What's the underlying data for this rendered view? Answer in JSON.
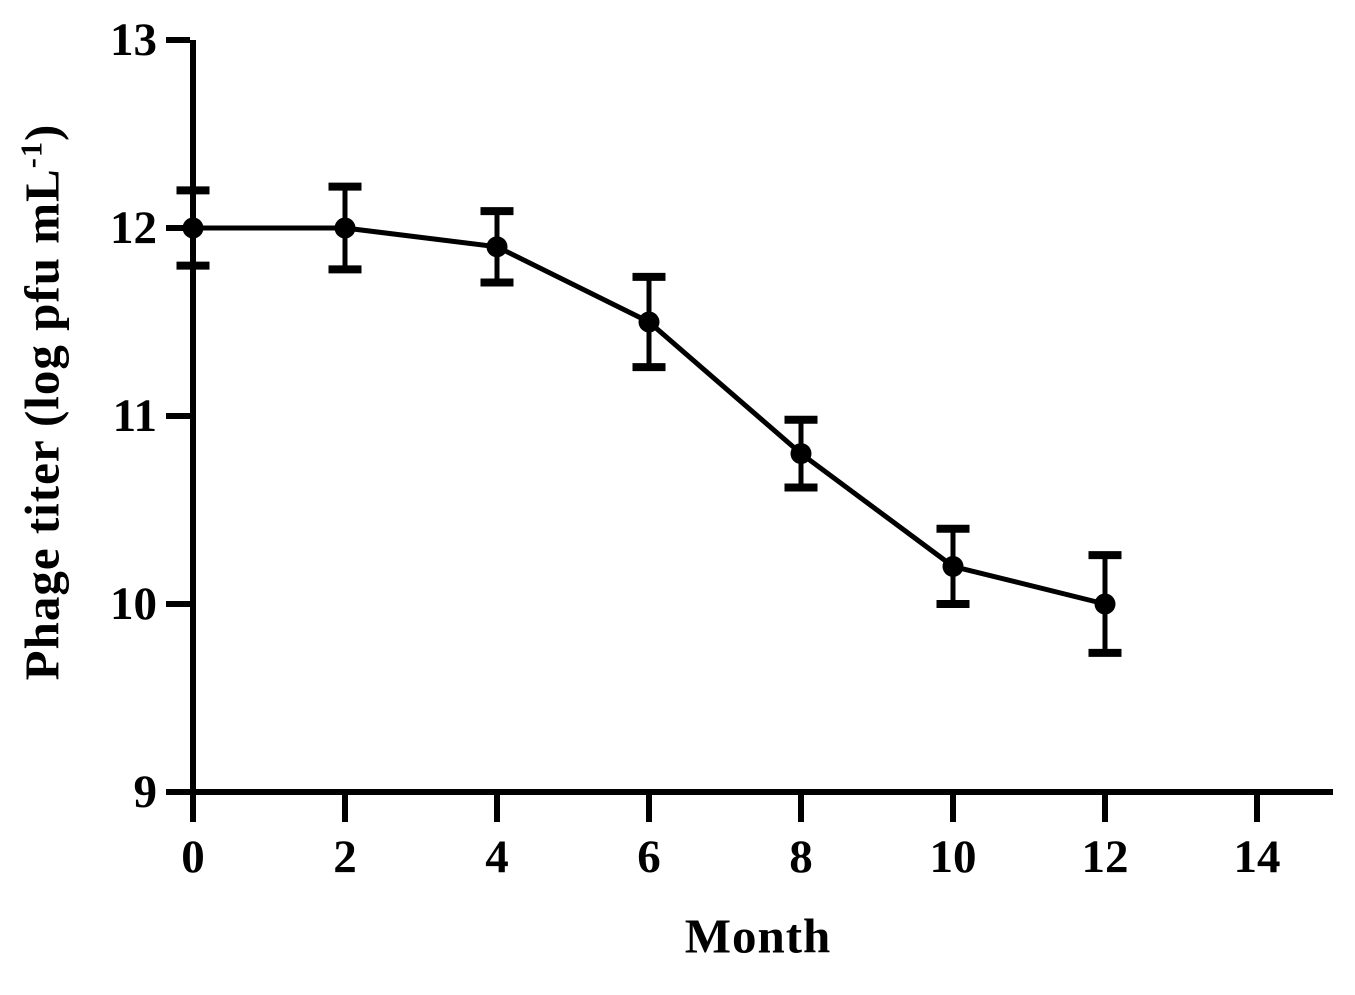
{
  "figure": {
    "background": "#ffffff",
    "ink_color": "#000000"
  },
  "axes": {
    "y_label_pre": "Phage titer (log pfu mL",
    "y_label_sup": "-1",
    "y_label_post": ")"
  },
  "chart_data": {
    "type": "line",
    "title": "",
    "xlabel": "Month",
    "ylabel": "Phage titer (log pfu mL^-1)",
    "x": [
      0,
      2,
      4,
      6,
      8,
      10,
      12
    ],
    "series": [
      {
        "name": "Phage titer",
        "values": [
          12.0,
          12.0,
          11.9,
          11.5,
          10.8,
          10.2,
          10.0
        ],
        "errors": [
          0.2,
          0.22,
          0.19,
          0.24,
          0.18,
          0.2,
          0.26
        ]
      }
    ],
    "xlim": [
      0,
      15
    ],
    "ylim": [
      9,
      13
    ],
    "x_ticks": [
      0,
      2,
      4,
      6,
      8,
      10,
      12,
      14
    ],
    "y_ticks": [
      9,
      10,
      11,
      12,
      13
    ],
    "grid": false,
    "legend": false,
    "marker": "circle",
    "error_bars": true,
    "line_color": "#000000"
  }
}
